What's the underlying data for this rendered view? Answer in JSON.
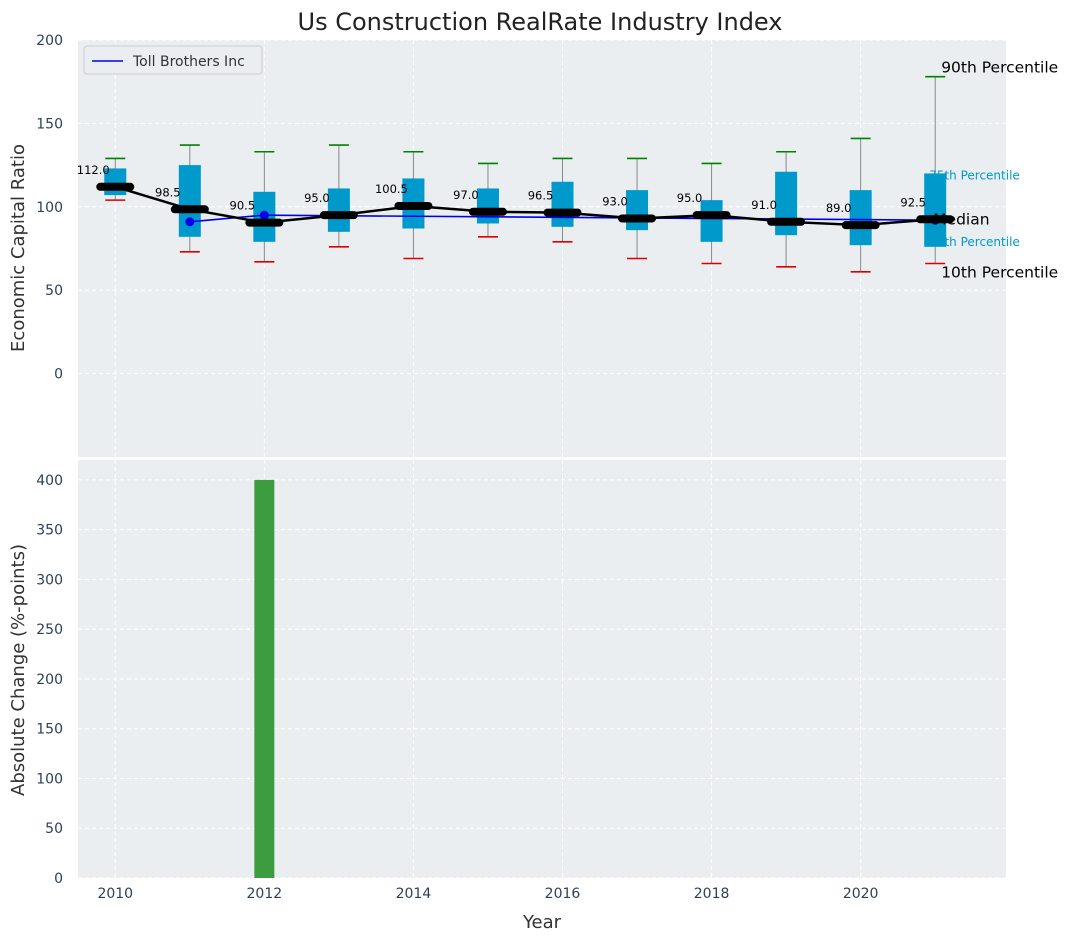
{
  "figure": {
    "title": "Us Construction RealRate Industry Index"
  },
  "chart_data": [
    {
      "type": "box",
      "ylabel": "Economic Capital Ratio",
      "ylim": [
        -50,
        200
      ],
      "xlim": [
        2009.5,
        2021.95
      ],
      "yticks": [
        0,
        50,
        100,
        150,
        200
      ],
      "grid": true,
      "legend": {
        "position": "top-left",
        "entries": [
          "Toll Brothers Inc"
        ]
      },
      "years": [
        2010,
        2011,
        2012,
        2013,
        2014,
        2015,
        2016,
        2017,
        2018,
        2019,
        2020,
        2021
      ],
      "medians": [
        112.0,
        98.5,
        90.5,
        95.0,
        100.5,
        97.0,
        96.5,
        93.0,
        95.0,
        91.0,
        89.0,
        92.5
      ],
      "median_labels": [
        "112.0",
        "98.5",
        "90.5",
        "95.0",
        "100.5",
        "97.0",
        "96.5",
        "93.0",
        "95.0",
        "91.0",
        "89.0",
        "92.5"
      ],
      "q1": [
        107,
        82,
        79,
        85,
        87,
        90,
        88,
        86,
        79,
        83,
        77,
        76
      ],
      "q3": [
        123,
        125,
        109,
        111,
        117,
        111,
        115,
        110,
        104,
        121,
        110,
        120
      ],
      "p10": [
        104,
        73,
        67,
        76,
        69,
        82,
        79,
        69,
        66,
        64,
        61,
        66
      ],
      "p90": [
        129,
        137,
        133,
        137,
        133,
        126,
        129,
        129,
        126,
        133,
        141,
        178
      ],
      "company_series": {
        "name": "Toll Brothers Inc",
        "x": [
          2011,
          2012,
          2021
        ],
        "y": [
          91,
          95,
          92
        ]
      },
      "annotations": {
        "p90": "90th Percentile",
        "p75": "75th Percentile",
        "median": "Median",
        "p25": "25th Percentile",
        "p10": "10th Percentile"
      },
      "colors": {
        "box": "#0099cc",
        "whisker": "#888888",
        "p90_cap": "#008000",
        "p10_cap": "#dd0000",
        "median": "#000000",
        "company": "#0000ee",
        "bar": "#3c9c40",
        "background": "#eaeef0"
      }
    },
    {
      "type": "bar",
      "xlabel": "Year",
      "ylabel": "Absolute Change (%-points)",
      "ylim": [
        0,
        420
      ],
      "yticks": [
        0,
        50,
        100,
        150,
        200,
        250,
        300,
        350,
        400
      ],
      "xticks": [
        2010,
        2012,
        2014,
        2016,
        2018,
        2020
      ],
      "grid": true,
      "x": [
        2012
      ],
      "values": [
        400
      ]
    }
  ]
}
